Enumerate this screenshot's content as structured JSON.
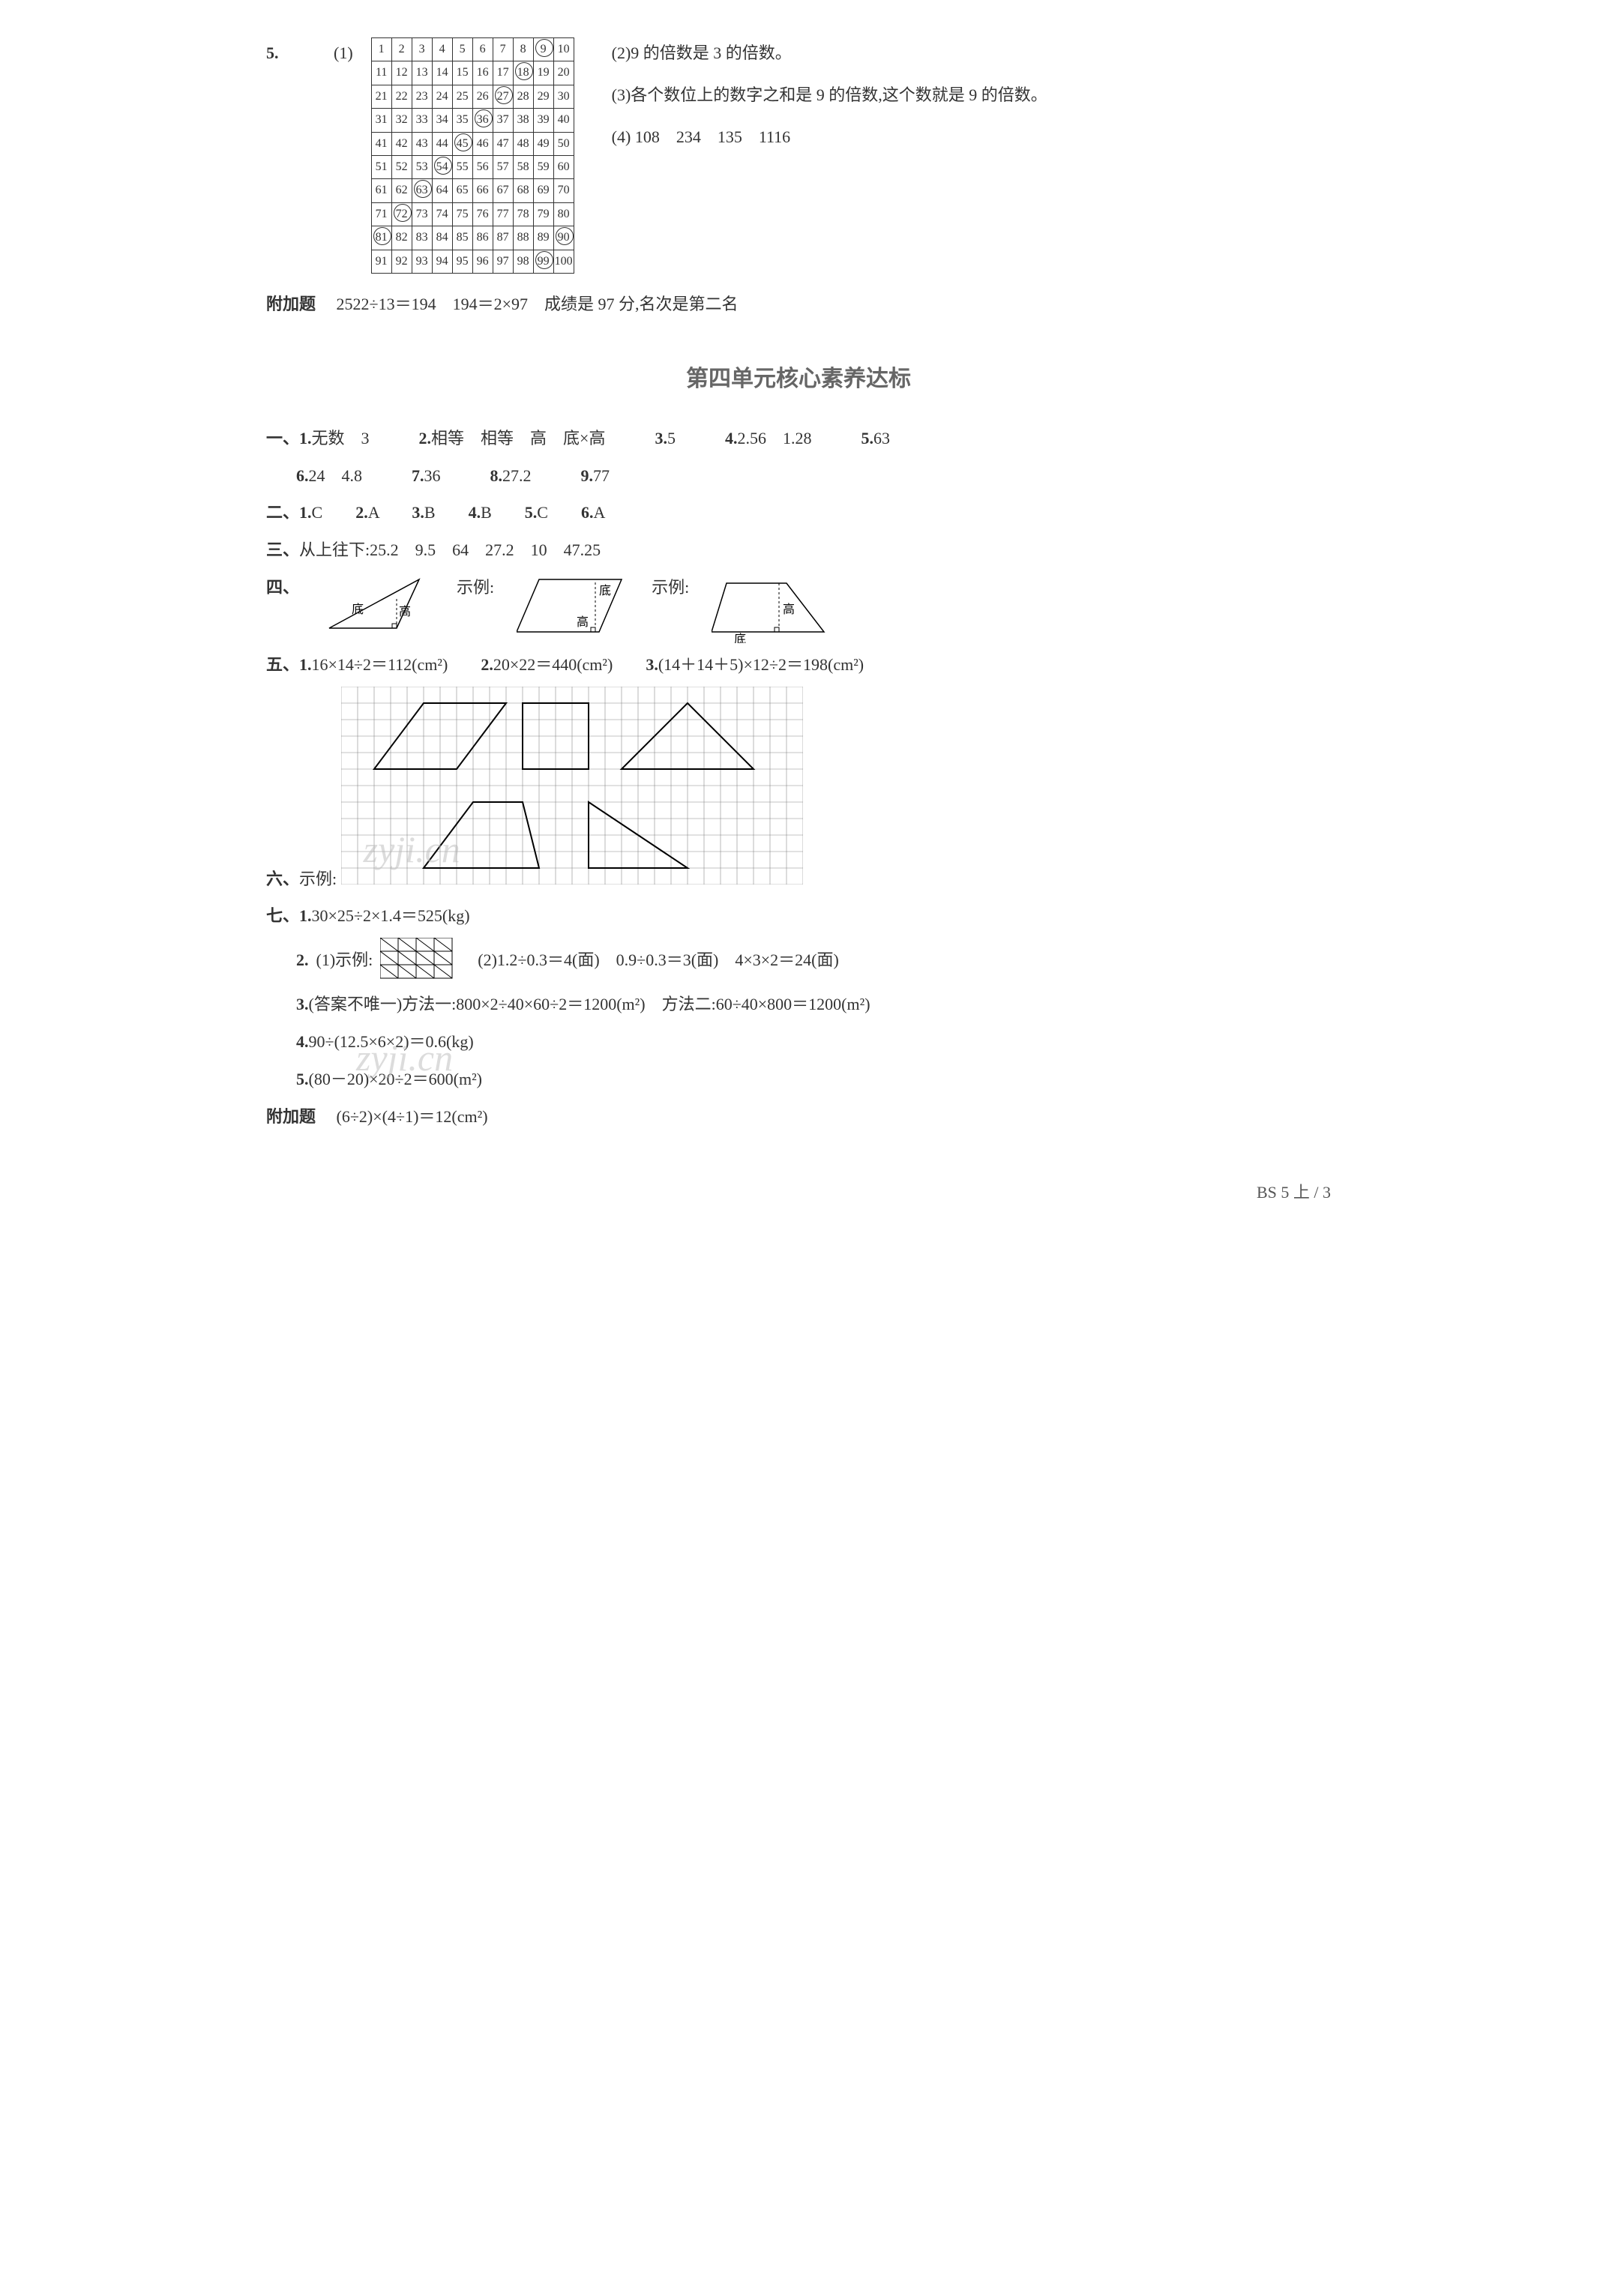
{
  "q5": {
    "label": "5.",
    "sub1": "(1)",
    "grid": {
      "rows": 10,
      "cols": 10,
      "circled": [
        9,
        18,
        27,
        36,
        45,
        54,
        63,
        72,
        81,
        90,
        99
      ]
    },
    "side": {
      "p2": "(2)9 的倍数是 3 的倍数。",
      "p3": "(3)各个数位上的数字之和是 9 的倍数,这个数就是 9 的倍数。",
      "p4_label": "(4)",
      "p4_vals": [
        "108",
        "234",
        "135",
        "1116"
      ]
    }
  },
  "fujia1": {
    "label": "附加题",
    "text": "2522÷13＝194　194＝2×97　成绩是 97 分,名次是第二名"
  },
  "unit_title": "第四单元核心素养达标",
  "sec1": {
    "label": "一、",
    "items": [
      {
        "n": "1.",
        "t": "无数　3"
      },
      {
        "n": "2.",
        "t": "相等　相等　高　底×高"
      },
      {
        "n": "3.",
        "t": "5"
      },
      {
        "n": "4.",
        "t": "2.56　1.28"
      },
      {
        "n": "5.",
        "t": "63"
      }
    ],
    "items2": [
      {
        "n": "6.",
        "t": "24　4.8"
      },
      {
        "n": "7.",
        "t": "36"
      },
      {
        "n": "8.",
        "t": "27.2"
      },
      {
        "n": "9.",
        "t": "77"
      }
    ]
  },
  "sec2": {
    "label": "二、",
    "items": [
      {
        "n": "1.",
        "t": "C"
      },
      {
        "n": "2.",
        "t": "A"
      },
      {
        "n": "3.",
        "t": "B"
      },
      {
        "n": "4.",
        "t": "B"
      },
      {
        "n": "5.",
        "t": "C"
      },
      {
        "n": "6.",
        "t": "A"
      }
    ]
  },
  "sec3": {
    "label": "三、",
    "prefix": "从上往下:",
    "vals": [
      "25.2",
      "9.5",
      "64",
      "27.2",
      "10",
      "47.25"
    ]
  },
  "sec4": {
    "label": "四、",
    "ex": "示例:",
    "labels": {
      "di": "底",
      "gao": "高"
    }
  },
  "sec5": {
    "label": "五、",
    "items": [
      {
        "n": "1.",
        "t": "16×14÷2＝112(cm²)"
      },
      {
        "n": "2.",
        "t": "20×22＝440(cm²)"
      },
      {
        "n": "3.",
        "t": "(14＋14＋5)×12÷2＝198(cm²)"
      }
    ]
  },
  "sec6": {
    "label": "六、",
    "ex": "示例:",
    "grid": {
      "cols": 28,
      "rows": 12,
      "cell": 22,
      "stroke": "#888888",
      "bg": "#ffffff"
    },
    "shapes_stroke": "#000000"
  },
  "sec7": {
    "label": "七、",
    "i1": {
      "n": "1.",
      "t": "30×25÷2×1.4＝525(kg)"
    },
    "i2": {
      "n": "2.",
      "sub1": "(1)示例:",
      "sub2": "(2)1.2÷0.3＝4(面)　0.9÷0.3＝3(面)　4×3×2＝24(面)"
    },
    "i3": {
      "n": "3.",
      "t": "(答案不唯一)方法一:800×2÷40×60÷2＝1200(m²)　方法二:60÷40×800＝1200(m²)"
    },
    "i4": {
      "n": "4.",
      "t": "90÷(12.5×6×2)＝0.6(kg)"
    },
    "i5": {
      "n": "5.",
      "t": "(80－20)×20÷2＝600(m²)"
    }
  },
  "fujia2": {
    "label": "附加题",
    "text": "(6÷2)×(4÷1)＝12(cm²)"
  },
  "footer": "BS 5 上 / 3",
  "watermark_text": "zyji.cn",
  "colors": {
    "text": "#333333",
    "title": "#666666",
    "grid": "#888888",
    "shape": "#000000",
    "bg": "#ffffff"
  }
}
